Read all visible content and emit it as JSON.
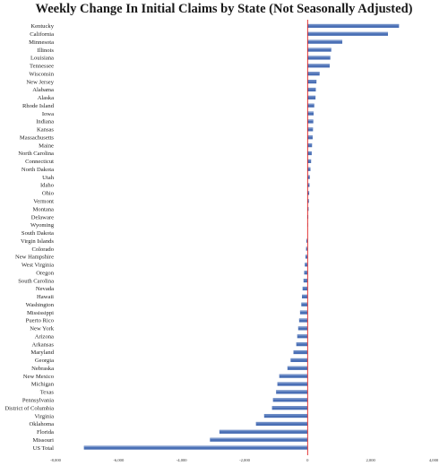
{
  "chart_data": {
    "type": "bar",
    "orientation": "horizontal",
    "title": "Weekly Change In Initial Claims by State (Not Seasonally Adjusted)",
    "xlabel": "",
    "ylabel": "",
    "xlim": [
      -8000,
      4000
    ],
    "x_ticks": [
      -8000,
      -6000,
      -4000,
      -2000,
      0,
      2000,
      4000
    ],
    "x_tick_labels": [
      "-8,000",
      "-6,000",
      "-4,000",
      "-2,000",
      "0",
      "2,000",
      "4,000"
    ],
    "grid": false,
    "legend": "none",
    "bar_color": "#4a6fb5",
    "zero_line_color": "#e02020",
    "categories": [
      "Kentucky",
      "California",
      "Minnesota",
      "Illinois",
      "Louisiana",
      "Tennessee",
      "Wisconsin",
      "New Jersey",
      "Alabama",
      "Alaska",
      "Rhode Island",
      "Iowa",
      "Indiana",
      "Kansas",
      "Massachusetts",
      "Maine",
      "North Carolina",
      "Connecticut",
      "North Dakota",
      "Utah",
      "Idaho",
      "Ohio",
      "Vermont",
      "Montana",
      "Delaware",
      "Wyoming",
      "South Dakota",
      "Virgin Islands",
      "Colorado",
      "New Hampshire",
      "West Virginia",
      "Oregon",
      "South Carolina",
      "Nevada",
      "Hawaii",
      "Washington",
      "Mississippi",
      "Puerto Rico",
      "New York",
      "Arizona",
      "Arkansas",
      "Maryland",
      "Georgia",
      "Nebraska",
      "New Mexico",
      "Michigan",
      "Texas",
      "Pennsylvania",
      "District of Columbia",
      "Virginia",
      "Oklahoma",
      "Florida",
      "Missouri",
      "US Total"
    ],
    "values": [
      2900,
      2550,
      1100,
      750,
      720,
      700,
      380,
      280,
      260,
      250,
      210,
      190,
      180,
      170,
      160,
      140,
      130,
      110,
      90,
      70,
      60,
      50,
      40,
      30,
      20,
      10,
      0,
      -40,
      -50,
      -70,
      -90,
      -110,
      -130,
      -160,
      -180,
      -200,
      -240,
      -270,
      -300,
      -330,
      -360,
      -450,
      -540,
      -640,
      -900,
      -960,
      -1000,
      -1100,
      -1130,
      -1380,
      -1640,
      -2800,
      -3100,
      -7100
    ]
  }
}
